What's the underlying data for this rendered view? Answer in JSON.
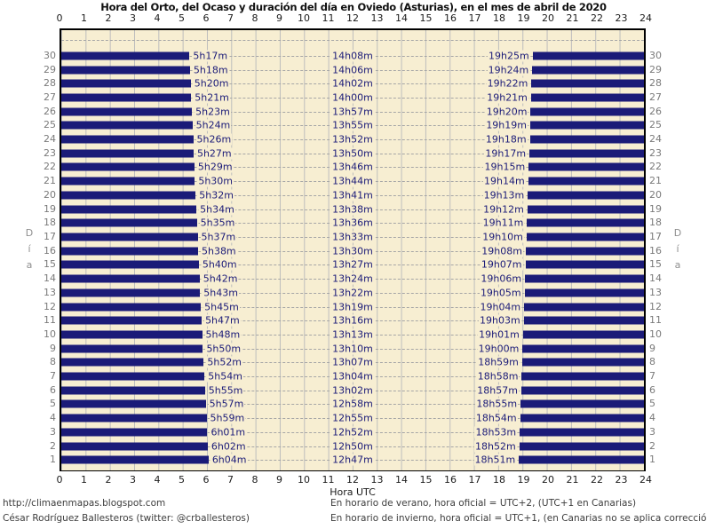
{
  "title": "Hora del Orto, del Ocaso y duración del día en Oviedo (Asturias), en el mes de abril de 2020",
  "axis": {
    "hours": [
      0,
      1,
      2,
      3,
      4,
      5,
      6,
      7,
      8,
      9,
      10,
      11,
      12,
      13,
      14,
      15,
      16,
      17,
      18,
      19,
      20,
      21,
      22,
      23,
      24
    ],
    "xlabel": "Hora UTC",
    "ylabel": "Día"
  },
  "footer": {
    "left": [
      "http://climaenmapas.blogspot.com",
      "César Rodríguez Ballesteros (twitter: @crballesteros)"
    ],
    "right": [
      "En horario de verano, hora oficial = UTC+2, (UTC+1 en Canarias)",
      "En horario de invierno, hora oficial = UTC+1, (en Canarias no se aplica corrección)"
    ]
  },
  "colors": {
    "plot_background": "#F7EED2",
    "bar": "#1b1b78",
    "label_text": "#1b1b78",
    "grid_vertical": "#bdbdbd",
    "grid_dashed": "#a6a6a6",
    "axis_text": "#1a1a1a",
    "day_number_text": "#7a7a7a",
    "border": "#000000"
  },
  "chart_data": {
    "type": "bar",
    "orientation": "horizontal-span",
    "title": "Hora del Orto, del Ocaso y duración del día en Oviedo (Asturias), en el mes de abril de 2020",
    "xlabel": "Hora UTC",
    "ylabel": "Día",
    "x_range_hours": [
      0,
      24
    ],
    "y_days_range": [
      1,
      30
    ],
    "grid": true,
    "description": "Night shown as navy bars (midnight→sunrise and sunset→midnight); labels give sunrise time, daylight duration, sunset time (UTC) per day of April 2020",
    "days": [
      {
        "day": 30,
        "sunrise": "5h17m",
        "duration": "14h08m",
        "sunset": "19h25m"
      },
      {
        "day": 29,
        "sunrise": "5h18m",
        "duration": "14h06m",
        "sunset": "19h24m"
      },
      {
        "day": 28,
        "sunrise": "5h20m",
        "duration": "14h02m",
        "sunset": "19h22m"
      },
      {
        "day": 27,
        "sunrise": "5h21m",
        "duration": "14h00m",
        "sunset": "19h21m"
      },
      {
        "day": 26,
        "sunrise": "5h23m",
        "duration": "13h57m",
        "sunset": "19h20m"
      },
      {
        "day": 25,
        "sunrise": "5h24m",
        "duration": "13h55m",
        "sunset": "19h19m"
      },
      {
        "day": 24,
        "sunrise": "5h26m",
        "duration": "13h52m",
        "sunset": "19h18m"
      },
      {
        "day": 23,
        "sunrise": "5h27m",
        "duration": "13h50m",
        "sunset": "19h17m"
      },
      {
        "day": 22,
        "sunrise": "5h29m",
        "duration": "13h46m",
        "sunset": "19h15m"
      },
      {
        "day": 21,
        "sunrise": "5h30m",
        "duration": "13h44m",
        "sunset": "19h14m"
      },
      {
        "day": 20,
        "sunrise": "5h32m",
        "duration": "13h41m",
        "sunset": "19h13m"
      },
      {
        "day": 19,
        "sunrise": "5h34m",
        "duration": "13h38m",
        "sunset": "19h12m"
      },
      {
        "day": 18,
        "sunrise": "5h35m",
        "duration": "13h36m",
        "sunset": "19h11m"
      },
      {
        "day": 17,
        "sunrise": "5h37m",
        "duration": "13h33m",
        "sunset": "19h10m"
      },
      {
        "day": 16,
        "sunrise": "5h38m",
        "duration": "13h30m",
        "sunset": "19h08m"
      },
      {
        "day": 15,
        "sunrise": "5h40m",
        "duration": "13h27m",
        "sunset": "19h07m"
      },
      {
        "day": 14,
        "sunrise": "5h42m",
        "duration": "13h24m",
        "sunset": "19h06m"
      },
      {
        "day": 13,
        "sunrise": "5h43m",
        "duration": "13h22m",
        "sunset": "19h05m"
      },
      {
        "day": 12,
        "sunrise": "5h45m",
        "duration": "13h19m",
        "sunset": "19h04m"
      },
      {
        "day": 11,
        "sunrise": "5h47m",
        "duration": "13h16m",
        "sunset": "19h03m"
      },
      {
        "day": 10,
        "sunrise": "5h48m",
        "duration": "13h13m",
        "sunset": "19h01m"
      },
      {
        "day": 9,
        "sunrise": "5h50m",
        "duration": "13h10m",
        "sunset": "19h00m"
      },
      {
        "day": 8,
        "sunrise": "5h52m",
        "duration": "13h07m",
        "sunset": "18h59m"
      },
      {
        "day": 7,
        "sunrise": "5h54m",
        "duration": "13h04m",
        "sunset": "18h58m"
      },
      {
        "day": 6,
        "sunrise": "5h55m",
        "duration": "13h02m",
        "sunset": "18h57m"
      },
      {
        "day": 5,
        "sunrise": "5h57m",
        "duration": "12h58m",
        "sunset": "18h55m"
      },
      {
        "day": 4,
        "sunrise": "5h59m",
        "duration": "12h55m",
        "sunset": "18h54m"
      },
      {
        "day": 3,
        "sunrise": "6h01m",
        "duration": "12h52m",
        "sunset": "18h53m"
      },
      {
        "day": 2,
        "sunrise": "6h02m",
        "duration": "12h50m",
        "sunset": "18h52m"
      },
      {
        "day": 1,
        "sunrise": "6h04m",
        "duration": "12h47m",
        "sunset": "18h51m"
      }
    ]
  }
}
